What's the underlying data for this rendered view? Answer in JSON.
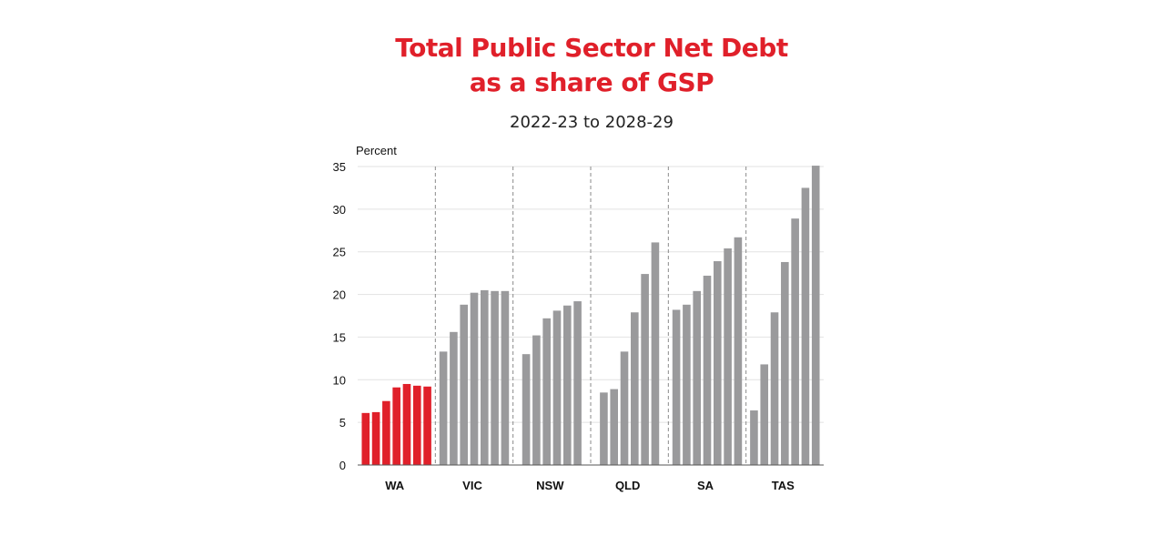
{
  "colors": {
    "title": "#e0202a",
    "highlight": "#e0202a",
    "bar": "#9a9a9c",
    "grid": "#e2e2e2",
    "divider": "#8a8a8a",
    "text": "#111111"
  },
  "header": {
    "title_line1": "Total Public Sector Net Debt",
    "title_line2": "as a share of GSP",
    "subtitle": "2022-23 to 2028-29"
  },
  "chart_data": {
    "type": "bar",
    "title": "Total Public Sector Net Debt as a share of GSP",
    "subtitle": "2022-23 to 2028-29",
    "ylabel": "Percent",
    "xlabel": "",
    "ylim": [
      0,
      35
    ],
    "yticks": [
      0,
      5,
      10,
      15,
      20,
      25,
      30,
      35
    ],
    "grid": true,
    "highlighted_group": "WA",
    "groups": [
      {
        "name": "WA",
        "values": [
          6.1,
          6.2,
          7.5,
          9.1,
          9.5,
          9.3,
          9.2
        ]
      },
      {
        "name": "VIC",
        "values": [
          13.3,
          15.6,
          18.8,
          20.2,
          20.5,
          20.4,
          20.4
        ]
      },
      {
        "name": "NSW",
        "values": [
          13.0,
          15.2,
          17.2,
          18.1,
          18.7,
          19.2
        ]
      },
      {
        "name": "QLD",
        "values": [
          8.5,
          8.9,
          13.3,
          17.9,
          22.4,
          26.1
        ]
      },
      {
        "name": "SA",
        "values": [
          18.2,
          18.8,
          20.4,
          22.2,
          23.9,
          25.4,
          26.7
        ]
      },
      {
        "name": "TAS",
        "values": [
          6.4,
          11.8,
          17.9,
          23.8,
          28.9,
          32.5,
          35.1
        ]
      }
    ]
  }
}
